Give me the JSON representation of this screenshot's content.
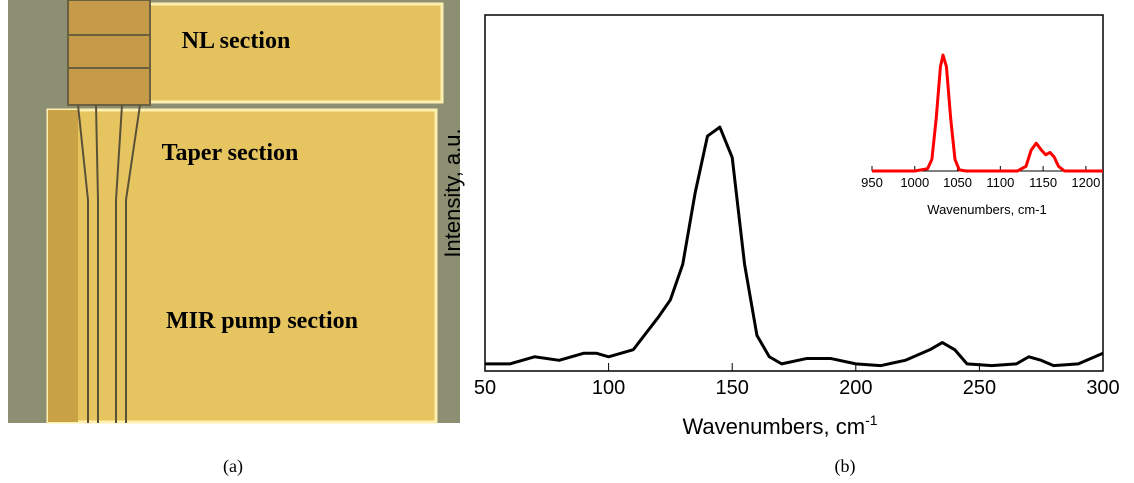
{
  "panel_a": {
    "labels": [
      "NL section",
      "Taper section",
      "MIR pump section"
    ],
    "caption": "(a)"
  },
  "panel_b": {
    "caption": "(b)"
  },
  "chart_data": [
    {
      "type": "line",
      "y_label": "Intensity, a.u.",
      "x_label": "Wavenumbers, cm",
      "x_label_superscript": "-1",
      "xlim": [
        50,
        300
      ],
      "xticks": [
        50,
        100,
        150,
        200,
        250,
        300
      ],
      "ylim": [
        0,
        1
      ],
      "series": [
        {
          "color": "#000000",
          "x": [
            50,
            60,
            70,
            80,
            90,
            95,
            100,
            110,
            120,
            125,
            130,
            135,
            140,
            145,
            150,
            155,
            160,
            165,
            170,
            180,
            190,
            200,
            210,
            220,
            230,
            235,
            240,
            245,
            255,
            265,
            270,
            275,
            280,
            290,
            300
          ],
          "values": [
            0.02,
            0.02,
            0.04,
            0.03,
            0.05,
            0.05,
            0.04,
            0.06,
            0.15,
            0.2,
            0.3,
            0.5,
            0.66,
            0.685,
            0.6,
            0.3,
            0.1,
            0.04,
            0.02,
            0.035,
            0.035,
            0.02,
            0.015,
            0.03,
            0.06,
            0.08,
            0.06,
            0.02,
            0.015,
            0.02,
            0.04,
            0.03,
            0.015,
            0.02,
            0.05
          ]
        }
      ]
    },
    {
      "type": "line",
      "x_label": "Wavenumbers, cm-1",
      "xlim": [
        950,
        1220
      ],
      "xticks": [
        950,
        1000,
        1050,
        1100,
        1150,
        1200
      ],
      "ylim": [
        0,
        1.13
      ],
      "series": [
        {
          "color": "#ff0000",
          "x": [
            950,
            1000,
            1015,
            1020,
            1025,
            1030,
            1033,
            1037,
            1042,
            1047,
            1052,
            1060,
            1120,
            1130,
            1136,
            1142,
            1148,
            1153,
            1158,
            1163,
            1168,
            1175,
            1220
          ],
          "values": [
            0,
            0,
            0.02,
            0.1,
            0.45,
            0.9,
            1.0,
            0.9,
            0.45,
            0.1,
            0.01,
            0,
            0,
            0.04,
            0.18,
            0.24,
            0.18,
            0.14,
            0.16,
            0.12,
            0.04,
            0,
            0
          ]
        }
      ]
    }
  ]
}
